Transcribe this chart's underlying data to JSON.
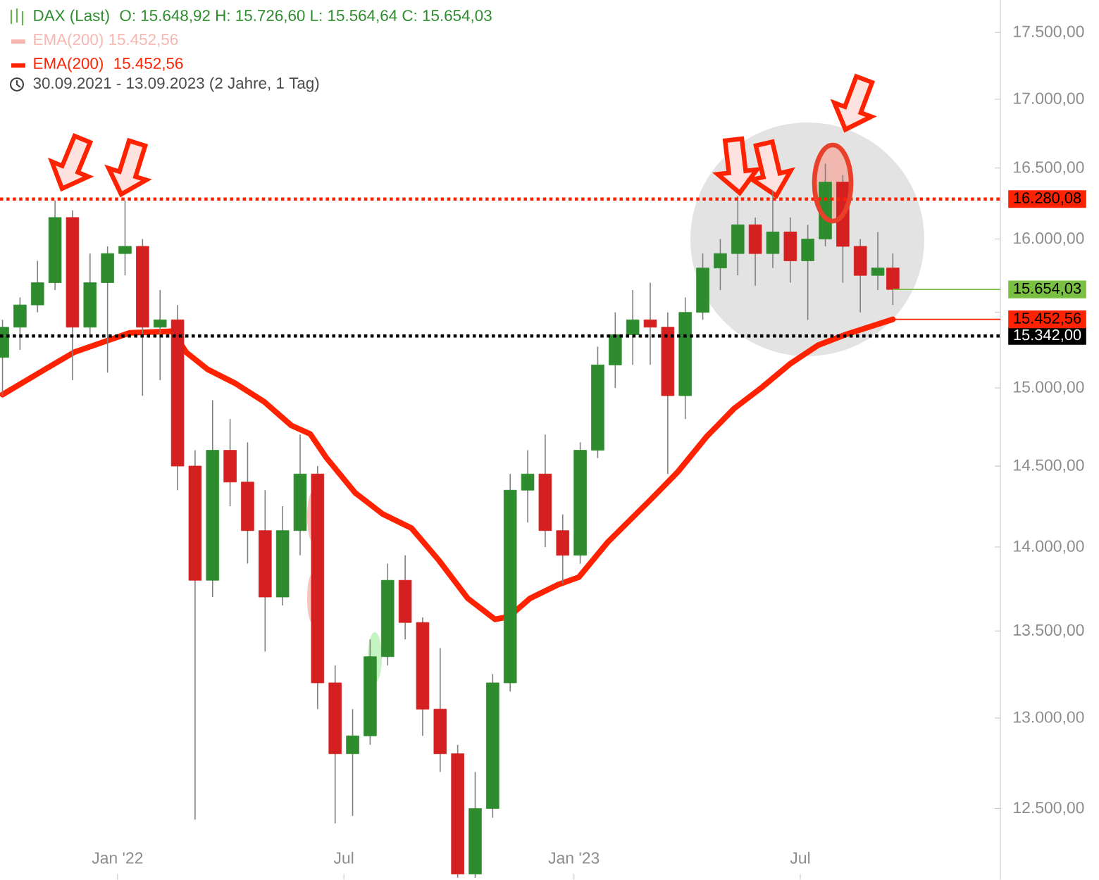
{
  "chart_data": {
    "type": "candlestick",
    "log": true,
    "legend": "top left",
    "xlim": [
      "2021-09-29",
      "2023-12-08"
    ],
    "ylim": [
      12120,
      17750
    ],
    "xticks": [
      {
        "value": "2022-01-01",
        "label": "Jan '22"
      },
      {
        "value": "2022-07-01",
        "label": "Jul"
      },
      {
        "value": "2023-01-01",
        "label": "Jan '23"
      },
      {
        "value": "2023-07-01",
        "label": "Jul"
      }
    ],
    "yticks": [
      {
        "value": 12500,
        "label": "12.500,00"
      },
      {
        "value": 13000,
        "label": "13.000,00"
      },
      {
        "value": 13500,
        "label": "13.500,00"
      },
      {
        "value": 14000,
        "label": "14.000,00"
      },
      {
        "value": 14500,
        "label": "14.500,00"
      },
      {
        "value": 15000,
        "label": "15.000,00"
      },
      {
        "value": 15500,
        "label": null
      },
      {
        "value": 16000,
        "label": "16.000,00"
      },
      {
        "value": 16500,
        "label": "16.500,00"
      },
      {
        "value": 17000,
        "label": "17.000,00"
      },
      {
        "value": 17500,
        "label": "17.500,00"
      }
    ],
    "series": [
      {
        "name": "DAX (Last)",
        "x": [
          "2021-10-01",
          "2021-10-15",
          "2021-10-29",
          "2021-11-12",
          "2021-11-26",
          "2021-12-10",
          "2021-12-24",
          "2022-01-07",
          "2022-01-21",
          "2022-02-04",
          "2022-02-18",
          "2022-03-04",
          "2022-03-18",
          "2022-04-01",
          "2022-04-15",
          "2022-04-29",
          "2022-05-13",
          "2022-05-27",
          "2022-06-10",
          "2022-06-24",
          "2022-07-08",
          "2022-07-22",
          "2022-08-05",
          "2022-08-19",
          "2022-09-02",
          "2022-09-16",
          "2022-09-30",
          "2022-10-14",
          "2022-10-28",
          "2022-11-11",
          "2022-11-25",
          "2022-12-09",
          "2022-12-23",
          "2023-01-06",
          "2023-01-20",
          "2023-02-03",
          "2023-02-17",
          "2023-03-03",
          "2023-03-17",
          "2023-03-31",
          "2023-04-14",
          "2023-04-28",
          "2023-05-12",
          "2023-05-26",
          "2023-06-09",
          "2023-06-23",
          "2023-07-07",
          "2023-07-21",
          "2023-08-04",
          "2023-08-18",
          "2023-09-01",
          "2023-09-13"
        ],
        "ohlc": [
          [
            15200,
            15450,
            14950,
            15400
          ],
          [
            15400,
            15600,
            15250,
            15550
          ],
          [
            15550,
            15850,
            15500,
            15700
          ],
          [
            15700,
            16270,
            15650,
            16150
          ],
          [
            16150,
            16200,
            15050,
            15400
          ],
          [
            15400,
            15900,
            15350,
            15700
          ],
          [
            15700,
            15950,
            15100,
            15900
          ],
          [
            15900,
            16270,
            15750,
            15950
          ],
          [
            15950,
            16000,
            14950,
            15400
          ],
          [
            15400,
            15650,
            15050,
            15450
          ],
          [
            15450,
            15550,
            14350,
            14500
          ],
          [
            14500,
            14600,
            12440,
            13800
          ],
          [
            13800,
            14920,
            13700,
            14600
          ],
          [
            14600,
            14800,
            14250,
            14400
          ],
          [
            14400,
            14650,
            13900,
            14100
          ],
          [
            14100,
            14350,
            13380,
            13700
          ],
          [
            13700,
            14250,
            13650,
            14100
          ],
          [
            14100,
            14700,
            13950,
            14450
          ],
          [
            14450,
            14500,
            13050,
            13200
          ],
          [
            13200,
            13300,
            12420,
            12800
          ],
          [
            12800,
            13050,
            12460,
            12900
          ],
          [
            12900,
            13450,
            12850,
            13350
          ],
          [
            13350,
            13900,
            13300,
            13800
          ],
          [
            13800,
            13950,
            13450,
            13550
          ],
          [
            13550,
            13580,
            12900,
            13050
          ],
          [
            13050,
            13400,
            12700,
            12800
          ],
          [
            12800,
            12850,
            12130,
            12150
          ],
          [
            12150,
            12700,
            12130,
            12500
          ],
          [
            12500,
            13250,
            12450,
            13200
          ],
          [
            13200,
            14450,
            13150,
            14350
          ],
          [
            14350,
            14600,
            14150,
            14450
          ],
          [
            14450,
            14700,
            14000,
            14100
          ],
          [
            14100,
            14200,
            13780,
            13950
          ],
          [
            13950,
            14650,
            13900,
            14600
          ],
          [
            14600,
            15270,
            14550,
            15150
          ],
          [
            15150,
            15500,
            15000,
            15350
          ],
          [
            15350,
            15650,
            15150,
            15450
          ],
          [
            15450,
            15700,
            15150,
            15400
          ],
          [
            15400,
            15500,
            14450,
            14950
          ],
          [
            14950,
            15600,
            14800,
            15500
          ],
          [
            15500,
            15900,
            15450,
            15800
          ],
          [
            15800,
            16000,
            15650,
            15900
          ],
          [
            15900,
            16300,
            15750,
            16100
          ],
          [
            16100,
            16150,
            15680,
            15900
          ],
          [
            15900,
            16340,
            15800,
            16050
          ],
          [
            16050,
            16150,
            15700,
            15850
          ],
          [
            15850,
            16100,
            15450,
            16000
          ],
          [
            16000,
            16530,
            15950,
            16400
          ],
          [
            16400,
            16450,
            15700,
            15950
          ],
          [
            15950,
            16000,
            15500,
            15750
          ],
          [
            15750,
            16050,
            15650,
            15800
          ],
          [
            15800,
            15900,
            15550,
            15654.03
          ]
        ],
        "colors": [
          "#2e8b2e",
          "#2e8b2e",
          "#2e8b2e",
          "#2e8b2e",
          "#d42020",
          "#2e8b2e",
          "#2e8b2e",
          "#2e8b2e",
          "#d42020",
          "#2e8b2e",
          "#d42020",
          "#d42020",
          "#2e8b2e",
          "#d42020",
          "#d42020",
          "#d42020",
          "#2e8b2e",
          "#2e8b2e",
          "#d42020",
          "#d42020",
          "#2e8b2e",
          "#2e8b2e",
          "#2e8b2e",
          "#d42020",
          "#d42020",
          "#d42020",
          "#d42020",
          "#2e8b2e",
          "#2e8b2e",
          "#2e8b2e",
          "#2e8b2e",
          "#d42020",
          "#d42020",
          "#2e8b2e",
          "#2e8b2e",
          "#2e8b2e",
          "#2e8b2e",
          "#d42020",
          "#d42020",
          "#2e8b2e",
          "#2e8b2e",
          "#2e8b2e",
          "#2e8b2e",
          "#d42020",
          "#2e8b2e",
          "#d42020",
          "#2e8b2e",
          "#2e8b2e",
          "#d42020",
          "#d42020",
          "#2e8b2e",
          "#d42020"
        ]
      },
      {
        "name": "EMA(200)",
        "type": "line",
        "color": "#ff2200",
        "line_style": "solid",
        "x": [
          "2021-10-01",
          "2021-11-04",
          "2021-11-27",
          "2021-12-20",
          "2022-01-11",
          "2022-02-14",
          "2022-02-25",
          "2022-03-14",
          "2022-04-05",
          "2022-04-28",
          "2022-05-20",
          "2022-06-04",
          "2022-06-17",
          "2022-07-10",
          "2022-08-01",
          "2022-08-24",
          "2022-09-15",
          "2022-10-08",
          "2022-10-30",
          "2022-11-10",
          "2022-11-27",
          "2022-12-20",
          "2023-01-05",
          "2023-01-28",
          "2023-03-03",
          "2023-03-25",
          "2023-04-17",
          "2023-05-09",
          "2023-05-31",
          "2023-06-23",
          "2023-07-15",
          "2023-08-07",
          "2023-09-13"
        ],
        "values": [
          14957,
          15121,
          15233,
          15299,
          15363,
          15373,
          15233,
          15121,
          15030,
          14912,
          14758,
          14704,
          14553,
          14333,
          14202,
          14116,
          13920,
          13693,
          13568,
          13584,
          13693,
          13776,
          13819,
          14030,
          14289,
          14464,
          14686,
          14866,
          15002,
          15159,
          15280,
          15353,
          15452.56
        ]
      }
    ],
    "ref_lines": [
      {
        "axis": "y",
        "value": 16280.08,
        "label": "16.280,08",
        "color": "#ff2200",
        "line_style": "dotted"
      },
      {
        "axis": "y",
        "value": 15342,
        "label": "15.342,00",
        "color": "#000000",
        "line_style": "dotted"
      }
    ],
    "annotations": [
      "O: 15.648,92  H: 15.726,60  L: 15.564,64  C: 15.654,03",
      "EMA(200)  15.452,56",
      "15.452,56",
      "30.09.2021 - 13.09.2023  (2 Jahre, 1 Tag)",
      {
        "text": "15.654,03",
        "x": "2023-09-13",
        "y": 15654.03
      },
      {
        "text": "15.452,56",
        "x": "2023-09-13",
        "y": 15452.56
      }
    ]
  }
}
